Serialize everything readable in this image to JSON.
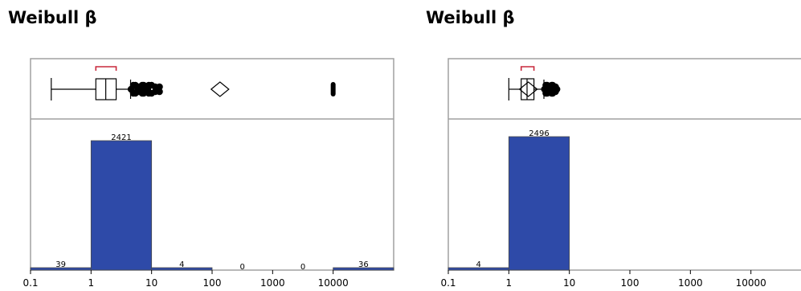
{
  "chart_data": [
    {
      "type": "bar",
      "title": "Weibull β",
      "x_scale": "log",
      "xlim": [
        0.1,
        100000
      ],
      "x_ticks": [
        "0.1",
        "1",
        "10",
        "100",
        "1000",
        "10000"
      ],
      "bins": [
        {
          "from": 0.1,
          "to": 1,
          "count": 39
        },
        {
          "from": 1,
          "to": 10,
          "count": 2421
        },
        {
          "from": 10,
          "to": 100,
          "count": 4
        },
        {
          "from": 100,
          "to": 1000,
          "count": 0
        },
        {
          "from": 1000,
          "to": 10000,
          "count": 0
        },
        {
          "from": 10000,
          "to": 100000,
          "count": 36
        }
      ],
      "boxplot": {
        "whisker_low": 0.22,
        "q1": 1.2,
        "median": 1.75,
        "q3": 2.6,
        "whisker_high": 4.5,
        "mean": 135,
        "shortest_half": [
          1.2,
          2.6
        ],
        "outliers": [
          4.6,
          5.0,
          5.4,
          5.8,
          6.2,
          6.6,
          7.0,
          7.4,
          7.8,
          8.2,
          8.6,
          9.0,
          10.0,
          11.5,
          13.5,
          10000
        ]
      },
      "bar_color": "#2e4aa8"
    },
    {
      "type": "bar",
      "title": "Weibull β",
      "x_scale": "log",
      "xlim": [
        0.1,
        100000
      ],
      "x_ticks": [
        "0.1",
        "1",
        "10",
        "100",
        "1000",
        "10000"
      ],
      "bins": [
        {
          "from": 0.1,
          "to": 1,
          "count": 4
        },
        {
          "from": 1,
          "to": 10,
          "count": 2496
        }
      ],
      "boxplot": {
        "whisker_low": 1.0,
        "q1": 1.6,
        "median": 2.0,
        "q3": 2.6,
        "whisker_high": 3.8,
        "mean": 2.1,
        "shortest_half": [
          1.6,
          2.6
        ],
        "outliers": [
          3.9,
          4.1,
          4.3,
          4.5,
          4.7,
          4.9,
          5.1,
          5.3,
          5.6,
          5.9,
          6.2
        ]
      },
      "bar_color": "#2e4aa8"
    }
  ]
}
